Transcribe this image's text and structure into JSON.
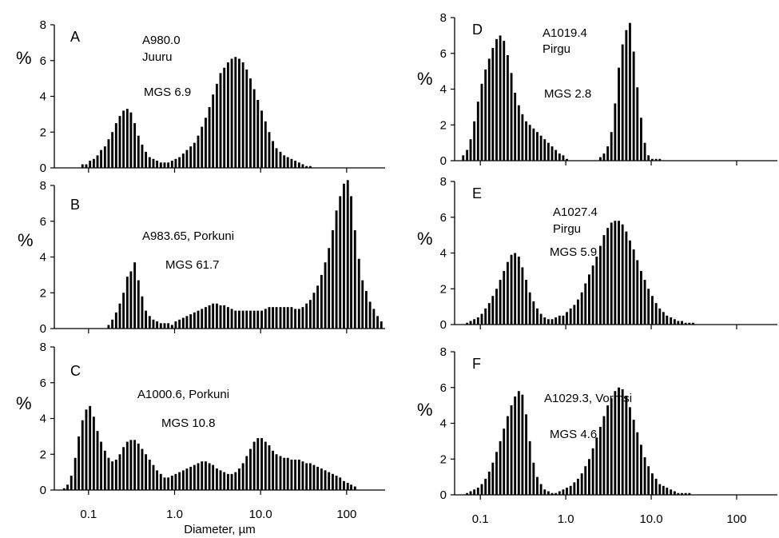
{
  "figure": {
    "xlabel": "Diameter, µm",
    "ylabel": "%",
    "x_tick_labels": [
      "0.1",
      "1.0",
      "10.0",
      "100"
    ],
    "y_tick_labels": [
      "0",
      "2",
      "4",
      "6",
      "8"
    ]
  },
  "chart_data": [
    {
      "type": "bar",
      "panel": "A",
      "sample": "A980.0",
      "formation": "Juuru",
      "mgs": "MGS 6.9",
      "x_scale": "log",
      "xlim": [
        0.04,
        280
      ],
      "ylim": [
        0,
        8
      ],
      "x": [
        0.085,
        0.094,
        0.104,
        0.115,
        0.127,
        0.14,
        0.155,
        0.171,
        0.189,
        0.209,
        0.231,
        0.255,
        0.282,
        0.311,
        0.344,
        0.38,
        0.42,
        0.464,
        0.513,
        0.567,
        0.626,
        0.692,
        0.765,
        0.845,
        0.934,
        1.03,
        1.14,
        1.26,
        1.39,
        1.54,
        1.7,
        1.88,
        2.08,
        2.3,
        2.54,
        2.8,
        3.1,
        3.42,
        3.78,
        4.18,
        4.62,
        5.11,
        5.64,
        6.24,
        6.89,
        7.62,
        8.42,
        9.3,
        10.3,
        11.4,
        12.6,
        13.9,
        15.3,
        17.0,
        18.8,
        20.7,
        22.9,
        25.3,
        28.0,
        30.9,
        34.2,
        37.8
      ],
      "values": [
        0.2,
        0.2,
        0.4,
        0.5,
        0.7,
        1.0,
        1.2,
        1.6,
        2.0,
        2.5,
        2.9,
        3.2,
        3.3,
        3.1,
        2.5,
        1.8,
        1.3,
        0.9,
        0.6,
        0.5,
        0.4,
        0.3,
        0.3,
        0.3,
        0.4,
        0.5,
        0.6,
        0.8,
        1.0,
        1.2,
        1.4,
        1.8,
        2.3,
        2.8,
        3.4,
        4.1,
        4.7,
        5.3,
        5.6,
        5.9,
        6.1,
        6.2,
        6.1,
        5.9,
        5.5,
        5.0,
        4.4,
        3.8,
        3.2,
        2.6,
        2.0,
        1.5,
        1.1,
        0.9,
        0.7,
        0.6,
        0.5,
        0.4,
        0.3,
        0.2,
        0.1,
        0.1
      ]
    },
    {
      "type": "bar",
      "panel": "B",
      "sample": "A983.65, Porkuni",
      "formation": "",
      "mgs": "MGS 61.7",
      "x_scale": "log",
      "xlim": [
        0.04,
        280
      ],
      "ylim": [
        0,
        8
      ],
      "x": [
        0.171,
        0.189,
        0.209,
        0.231,
        0.255,
        0.282,
        0.311,
        0.344,
        0.38,
        0.42,
        0.464,
        0.513,
        0.567,
        0.626,
        0.692,
        0.765,
        0.845,
        0.934,
        1.03,
        1.14,
        1.26,
        1.39,
        1.54,
        1.7,
        1.88,
        2.08,
        2.3,
        2.54,
        2.8,
        3.1,
        3.42,
        3.78,
        4.18,
        4.62,
        5.11,
        5.64,
        6.24,
        6.89,
        7.62,
        8.42,
        9.3,
        10.3,
        11.4,
        12.6,
        13.9,
        15.3,
        17.0,
        18.8,
        20.7,
        22.9,
        25.3,
        28.0,
        30.9,
        34.2,
        37.8,
        41.7,
        46.1,
        51.0,
        56.4,
        62.3,
        68.9,
        76.1,
        84.1,
        93.0,
        103,
        113,
        125,
        139,
        153,
        169,
        187,
        207,
        229,
        253
      ],
      "values": [
        0.2,
        0.5,
        0.9,
        1.4,
        2.0,
        2.9,
        3.2,
        3.7,
        2.7,
        1.8,
        1.0,
        0.7,
        0.5,
        0.4,
        0.3,
        0.3,
        0.3,
        0.2,
        0.4,
        0.5,
        0.6,
        0.7,
        0.8,
        0.9,
        1.0,
        1.1,
        1.2,
        1.3,
        1.4,
        1.4,
        1.3,
        1.3,
        1.2,
        1.1,
        1.0,
        1.0,
        1.0,
        1.0,
        1.0,
        1.0,
        1.0,
        1.0,
        1.1,
        1.2,
        1.2,
        1.2,
        1.2,
        1.2,
        1.2,
        1.2,
        1.1,
        1.1,
        1.2,
        1.4,
        1.6,
        2.0,
        2.4,
        3.0,
        3.7,
        4.5,
        5.5,
        6.6,
        7.4,
        8.1,
        8.3,
        7.4,
        5.5,
        3.9,
        2.7,
        2.1,
        1.5,
        1.1,
        0.7,
        0.4
      ]
    },
    {
      "type": "bar",
      "panel": "C",
      "sample": "A1000.6, Porkuni",
      "formation": "",
      "mgs": "MGS 10.8",
      "x_scale": "log",
      "xlim": [
        0.04,
        280
      ],
      "ylim": [
        0,
        8
      ],
      "x": [
        0.052,
        0.057,
        0.063,
        0.07,
        0.077,
        0.085,
        0.094,
        0.104,
        0.115,
        0.127,
        0.14,
        0.155,
        0.171,
        0.189,
        0.209,
        0.231,
        0.255,
        0.282,
        0.311,
        0.344,
        0.38,
        0.42,
        0.464,
        0.513,
        0.567,
        0.626,
        0.692,
        0.765,
        0.845,
        0.934,
        1.03,
        1.14,
        1.26,
        1.39,
        1.54,
        1.7,
        1.88,
        2.08,
        2.3,
        2.54,
        2.8,
        3.1,
        3.42,
        3.78,
        4.18,
        4.62,
        5.11,
        5.64,
        6.24,
        6.89,
        7.62,
        8.42,
        9.3,
        10.3,
        11.4,
        12.6,
        13.9,
        15.3,
        17.0,
        18.8,
        20.7,
        22.9,
        25.3,
        28.0,
        30.9,
        34.2,
        37.8,
        41.7,
        46.1,
        51.0,
        56.4,
        62.3,
        68.9,
        76.1,
        84.1,
        93.0,
        103,
        113,
        125
      ],
      "values": [
        0.1,
        0.3,
        0.8,
        1.8,
        3.0,
        3.9,
        4.5,
        4.7,
        4.1,
        3.3,
        2.7,
        2.2,
        1.8,
        1.6,
        1.7,
        2.0,
        2.4,
        2.7,
        2.8,
        2.8,
        2.6,
        2.3,
        2.0,
        1.7,
        1.4,
        1.1,
        0.9,
        0.7,
        0.7,
        0.8,
        0.9,
        1.0,
        1.1,
        1.2,
        1.3,
        1.4,
        1.5,
        1.6,
        1.6,
        1.5,
        1.4,
        1.2,
        1.1,
        1.0,
        0.9,
        0.9,
        1.0,
        1.2,
        1.5,
        1.9,
        2.3,
        2.7,
        2.9,
        2.9,
        2.7,
        2.5,
        2.2,
        2.0,
        1.9,
        1.8,
        1.8,
        1.7,
        1.7,
        1.7,
        1.6,
        1.5,
        1.5,
        1.4,
        1.3,
        1.2,
        1.1,
        1.0,
        0.9,
        0.8,
        0.7,
        0.5,
        0.4,
        0.3,
        0.2
      ]
    },
    {
      "type": "bar",
      "panel": "D",
      "sample": "A1019.4",
      "formation": "Pirgu",
      "mgs": "MGS 2.8",
      "x_scale": "log",
      "xlim": [
        0.05,
        300
      ],
      "ylim": [
        0,
        8
      ],
      "x": [
        0.063,
        0.07,
        0.077,
        0.085,
        0.094,
        0.104,
        0.115,
        0.127,
        0.14,
        0.155,
        0.171,
        0.189,
        0.209,
        0.231,
        0.255,
        0.282,
        0.311,
        0.344,
        0.38,
        0.42,
        0.464,
        0.513,
        0.567,
        0.626,
        0.692,
        0.765,
        0.845,
        0.934,
        1.03,
        2.54,
        2.8,
        3.1,
        3.42,
        3.78,
        4.18,
        4.62,
        5.11,
        5.64,
        6.24,
        6.89,
        7.62,
        8.42,
        9.3,
        10.3,
        11.4,
        12.6
      ],
      "values": [
        0.3,
        0.6,
        1.2,
        2.2,
        3.3,
        4.3,
        5.1,
        5.7,
        6.3,
        6.8,
        7.0,
        6.7,
        5.9,
        4.9,
        3.8,
        3.1,
        2.6,
        2.2,
        2.0,
        1.8,
        1.6,
        1.4,
        1.2,
        1.0,
        0.8,
        0.6,
        0.4,
        0.3,
        0.1,
        0.2,
        0.4,
        0.8,
        1.6,
        3.2,
        5.2,
        6.5,
        7.3,
        7.7,
        6.1,
        4.1,
        2.4,
        1.0,
        0.3,
        0.1,
        0.1,
        0.1
      ]
    },
    {
      "type": "bar",
      "panel": "E",
      "sample": "A1027.4",
      "formation": "Pirgu",
      "mgs": "MGS 5.9",
      "x_scale": "log",
      "xlim": [
        0.05,
        300
      ],
      "ylim": [
        0,
        8
      ],
      "x": [
        0.07,
        0.077,
        0.085,
        0.094,
        0.104,
        0.115,
        0.127,
        0.14,
        0.155,
        0.171,
        0.189,
        0.209,
        0.231,
        0.255,
        0.282,
        0.311,
        0.344,
        0.38,
        0.42,
        0.464,
        0.513,
        0.567,
        0.626,
        0.692,
        0.765,
        0.845,
        0.934,
        1.03,
        1.14,
        1.26,
        1.39,
        1.54,
        1.7,
        1.88,
        2.08,
        2.3,
        2.54,
        2.8,
        3.1,
        3.42,
        3.78,
        4.18,
        4.62,
        5.11,
        5.64,
        6.24,
        6.89,
        7.62,
        8.42,
        9.3,
        10.3,
        11.4,
        12.6,
        13.9,
        15.3,
        17.0,
        18.8,
        20.7,
        22.9,
        25.3,
        28.0,
        30.9
      ],
      "values": [
        0.1,
        0.2,
        0.3,
        0.4,
        0.6,
        0.9,
        1.2,
        1.6,
        2.0,
        2.5,
        3.0,
        3.5,
        3.9,
        4.0,
        3.8,
        3.2,
        2.5,
        1.8,
        1.3,
        0.9,
        0.6,
        0.4,
        0.3,
        0.3,
        0.4,
        0.5,
        0.5,
        0.7,
        0.9,
        1.1,
        1.4,
        1.8,
        2.3,
        2.8,
        3.3,
        3.8,
        4.4,
        5.0,
        5.4,
        5.7,
        5.8,
        5.8,
        5.6,
        5.2,
        4.7,
        4.2,
        3.6,
        3.0,
        2.5,
        2.0,
        1.6,
        1.2,
        0.9,
        0.7,
        0.5,
        0.4,
        0.3,
        0.2,
        0.2,
        0.1,
        0.1,
        0.1
      ]
    },
    {
      "type": "bar",
      "panel": "F",
      "sample": "A1029.3, Vormsi",
      "formation": "",
      "mgs": "MGS 4.6",
      "x_scale": "log",
      "xlim": [
        0.05,
        300
      ],
      "ylim": [
        0,
        8
      ],
      "x": [
        0.07,
        0.077,
        0.085,
        0.094,
        0.104,
        0.115,
        0.127,
        0.14,
        0.155,
        0.171,
        0.189,
        0.209,
        0.231,
        0.255,
        0.282,
        0.311,
        0.344,
        0.38,
        0.42,
        0.464,
        0.513,
        0.567,
        0.626,
        0.692,
        0.765,
        0.845,
        0.934,
        1.03,
        1.14,
        1.26,
        1.39,
        1.54,
        1.7,
        1.88,
        2.08,
        2.3,
        2.54,
        2.8,
        3.1,
        3.42,
        3.78,
        4.18,
        4.62,
        5.11,
        5.64,
        6.24,
        6.89,
        7.62,
        8.42,
        9.3,
        10.3,
        11.4,
        12.6,
        13.9,
        15.3,
        17.0,
        18.8,
        20.7,
        22.9,
        25.3,
        28.0
      ],
      "values": [
        0.1,
        0.2,
        0.3,
        0.4,
        0.6,
        0.9,
        1.3,
        1.8,
        2.4,
        3.0,
        3.7,
        4.4,
        5.0,
        5.5,
        5.8,
        5.6,
        4.5,
        3.0,
        1.8,
        1.0,
        0.6,
        0.3,
        0.2,
        0.1,
        0.1,
        0.2,
        0.3,
        0.4,
        0.5,
        0.7,
        0.9,
        1.2,
        1.6,
        2.0,
        2.6,
        3.2,
        3.8,
        4.4,
        5.0,
        5.4,
        5.8,
        6.0,
        5.9,
        5.5,
        4.9,
        4.2,
        3.5,
        2.8,
        2.1,
        1.6,
        1.2,
        0.9,
        0.6,
        0.5,
        0.4,
        0.3,
        0.2,
        0.1,
        0.1,
        0.1,
        0.1
      ]
    }
  ]
}
